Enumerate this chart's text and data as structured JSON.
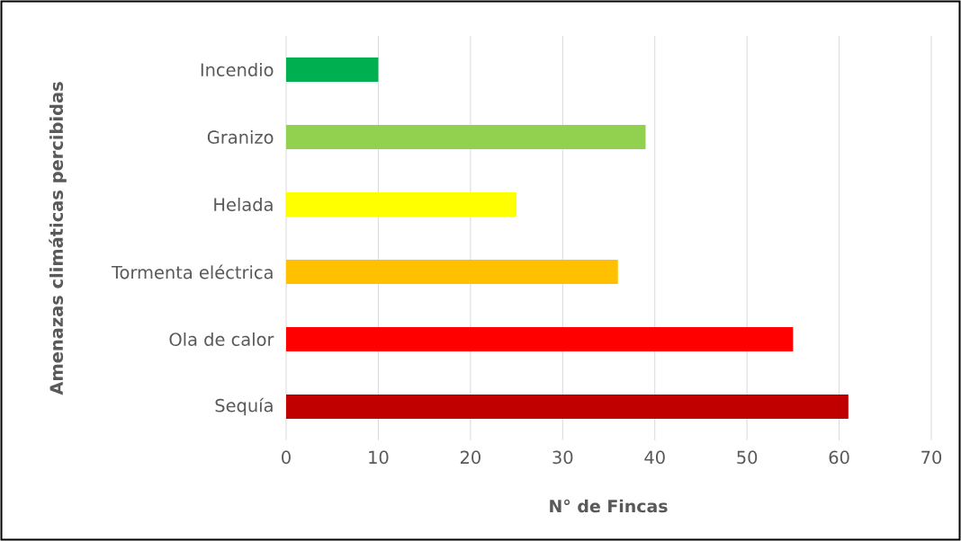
{
  "chart_data": {
    "type": "bar",
    "orientation": "horizontal",
    "ylabel": "Amenazas climáticas percibidas",
    "xlabel": "N° de Fincas",
    "categories": [
      "Incendio",
      "Granizo",
      "Helada",
      "Tormenta eléctrica",
      "Ola de calor",
      "Sequía"
    ],
    "values": [
      10,
      39,
      25,
      36,
      55,
      61
    ],
    "colors": [
      "#00b050",
      "#92d050",
      "#ffff00",
      "#ffc000",
      "#ff0000",
      "#c00000"
    ],
    "xlim": [
      0,
      70
    ],
    "xticks": [
      0,
      10,
      20,
      30,
      40,
      50,
      60,
      70
    ],
    "grid": "x"
  }
}
